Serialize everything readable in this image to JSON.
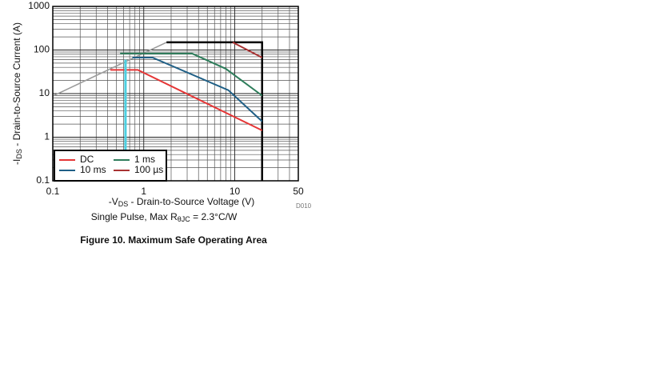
{
  "chart_data": {
    "type": "line",
    "xlabel": {
      "parts": [
        "-V",
        "DS",
        " - Drain-to-Source Voltage (V)"
      ]
    },
    "ylabel": {
      "parts": [
        "-I",
        "DS",
        " - Drain-to-Source Current (A)"
      ]
    },
    "subtitle": {
      "parts": [
        "Single Pulse, Max R",
        "θJC",
        " = 2.3°C/W"
      ]
    },
    "code": "D010",
    "caption": "Figure 10. Maximum Safe Operating Area",
    "xscale": "log",
    "yscale": "log",
    "grid": true,
    "legend": "lower left",
    "xlim": [
      0.1,
      50
    ],
    "ylim": [
      0.1,
      1000
    ],
    "xticks": [
      0.1,
      1,
      10,
      50
    ],
    "yticks": [
      0.1,
      1,
      10,
      100,
      1000
    ],
    "series": [
      {
        "name": "DC",
        "color": "#e53535",
        "x": [
          0.43,
          0.86,
          20
        ],
        "values": [
          35,
          35,
          1.43
        ]
      },
      {
        "name": "10 ms",
        "color": "#1f5f86",
        "x": [
          0.75,
          1.25,
          8.5,
          20
        ],
        "values": [
          67,
          67,
          12,
          2.3
        ]
      },
      {
        "name": "1 ms",
        "color": "#2e7d5b",
        "x": [
          0.55,
          3.4,
          8,
          20
        ],
        "values": [
          83,
          83,
          37,
          9
        ]
      },
      {
        "name": "100 µs",
        "color": "#a83232",
        "x": [
          9.5,
          20
        ],
        "values": [
          150,
          67
        ]
      }
    ],
    "boundaries": [
      {
        "color": "#9a9a9a",
        "width": 1.5,
        "x": [
          0.1,
          1.78
        ],
        "values": [
          8.8,
          150
        ]
      },
      {
        "color": "#000000",
        "width": 2.5,
        "x": [
          1.78,
          20,
          20
        ],
        "values": [
          150,
          150,
          0.1
        ]
      }
    ],
    "cursor": {
      "color": "#4dd0e1",
      "x": 0.63,
      "values": [
        0.1,
        60
      ]
    }
  }
}
